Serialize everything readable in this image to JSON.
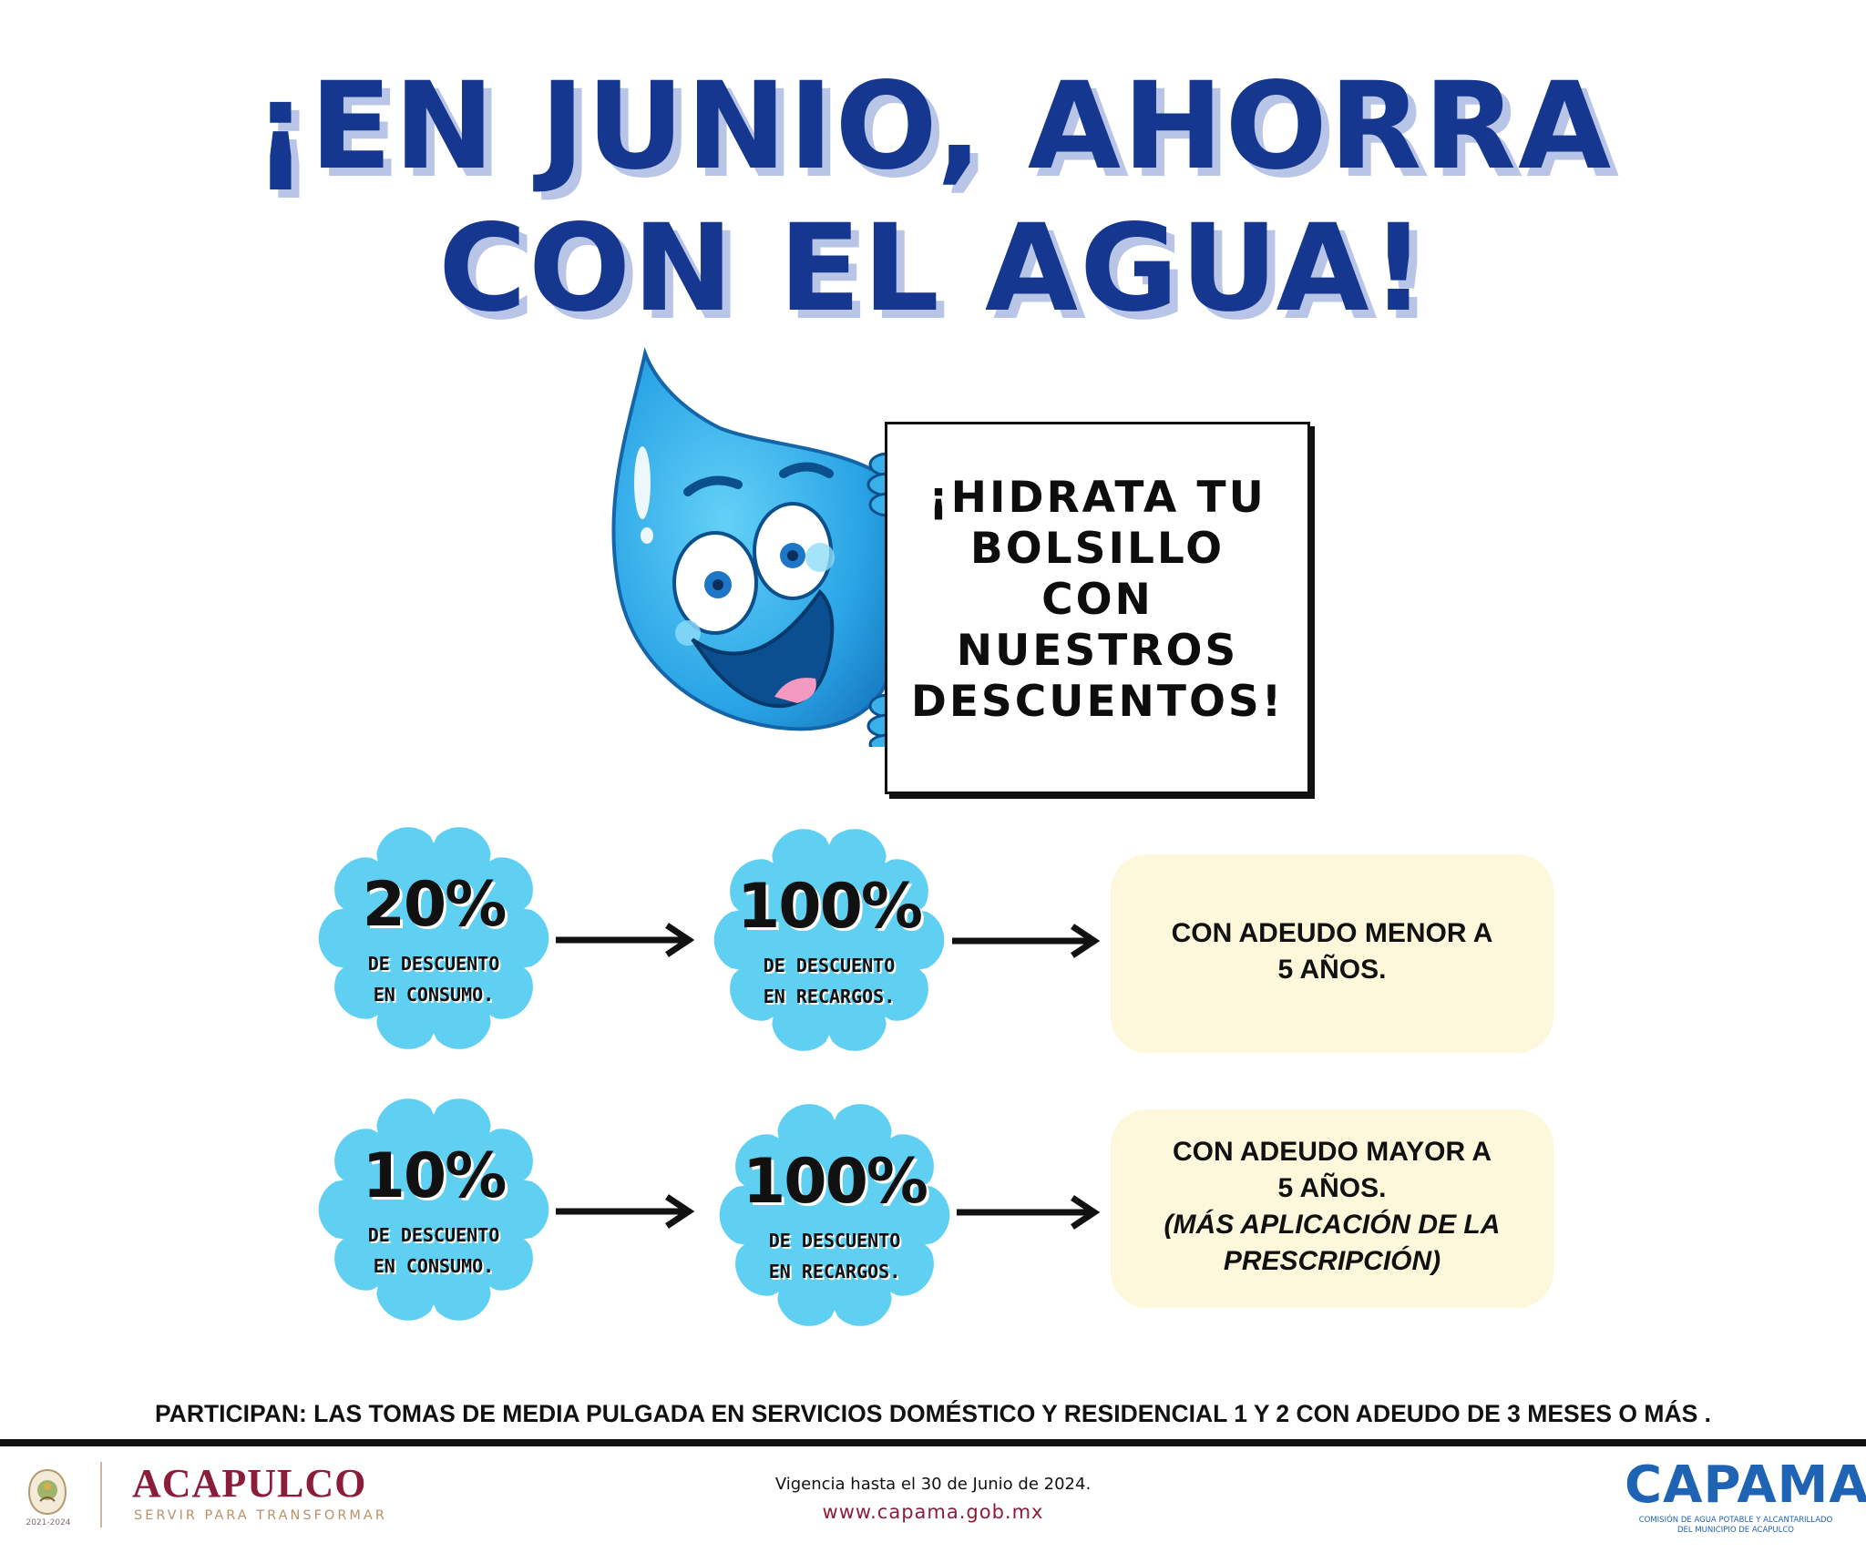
{
  "headline": {
    "line1": "¡EN JUNIO, AHORRA",
    "line2": "CON EL AGUA!"
  },
  "sign": {
    "lines": [
      "¡HIDRATA TU",
      "BOLSILLO",
      "CON",
      "NUESTROS",
      "DESCUENTOS!"
    ]
  },
  "offers": [
    {
      "consumption": {
        "percent": "20%",
        "line1": "DE DESCUENTO",
        "line2": "EN CONSUMO."
      },
      "surcharges": {
        "percent": "100%",
        "line1": "DE DESCUENTO",
        "line2": "EN RECARGOS."
      },
      "condition": [
        "CON ADEUDO MENOR A",
        "5 AÑOS."
      ]
    },
    {
      "consumption": {
        "percent": "10%",
        "line1": "DE DESCUENTO",
        "line2": "EN CONSUMO."
      },
      "surcharges": {
        "percent": "100%",
        "line1": "DE DESCUENTO",
        "line2": "EN RECARGOS."
      },
      "condition": [
        "CON ADEUDO MAYOR A",
        "5 AÑOS."
      ],
      "condition_note": [
        "(MÁS APLICACIÓN DE LA",
        "PRESCRIPCIÓN)"
      ]
    }
  ],
  "participants": "PARTICIPAN: LAS TOMAS DE MEDIA PULGADA EN SERVICIOS DOMÉSTICO Y RESIDENCIAL 1 Y 2 CON ADEUDO DE 3 MESES O MÁS .",
  "footer": {
    "seal_years": "2021-2024",
    "city": "ACAPULCO",
    "motto": "SERVIR PARA TRANSFORMAR",
    "validity": "Vigencia hasta el 30 de Junio de 2024.",
    "website": "www.capama.gob.mx",
    "capama_logo": "CAPAMA",
    "capama_desc": [
      "COMISIÓN DE AGUA POTABLE Y ALCANTARILLADO",
      "DEL MUNICIPIO DE ACAPULCO"
    ]
  },
  "colors": {
    "headline": "#16378f",
    "headline_shadow": "#b9c5e6",
    "badge": "#5fd0f2",
    "info_box": "#fdf8dc",
    "city": "#8c1d3a",
    "capama": "#1f63b5"
  },
  "icons": [
    "water-drop-mascot-icon",
    "municipal-seal-icon"
  ]
}
